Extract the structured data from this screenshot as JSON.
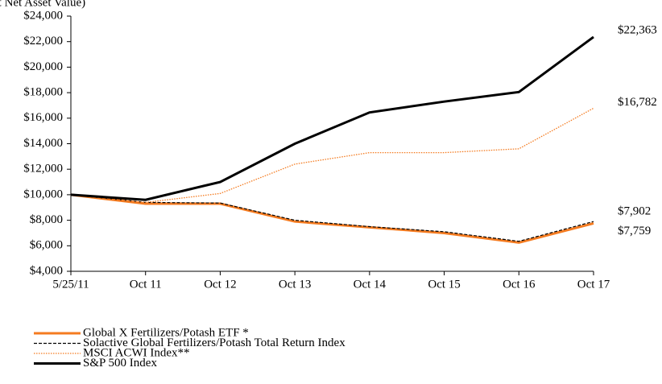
{
  "chart_data": {
    "type": "line",
    "subtitle": "(at Net Asset Value)",
    "categories": [
      "5/25/11",
      "Oct 11",
      "Oct 12",
      "Oct 13",
      "Oct 14",
      "Oct 15",
      "Oct 16",
      "Oct 17"
    ],
    "series": [
      {
        "name": "Global X Fertilizers/Potash ETF *",
        "color": "#f47b20",
        "style": "solid",
        "width": 3,
        "values": [
          10000,
          9300,
          9300,
          7900,
          7450,
          7000,
          6250,
          7759
        ],
        "value_labels": [
          null,
          null,
          null,
          null,
          null,
          null,
          null,
          "$7,759"
        ]
      },
      {
        "name": "Solactive Global Fertilizers/Potash Total Return Index",
        "color": "#000000",
        "style": "dashed",
        "width": 1.2,
        "values": [
          10000,
          9400,
          9350,
          8000,
          7500,
          7100,
          6350,
          7902
        ],
        "value_labels": [
          null,
          null,
          null,
          null,
          null,
          null,
          null,
          "$7,902"
        ]
      },
      {
        "name": "MSCI ACWI Index**",
        "color": "#f47b20",
        "style": "dotted",
        "width": 1.3,
        "values": [
          10000,
          9400,
          10100,
          12400,
          13300,
          13300,
          13600,
          16782
        ],
        "value_labels": [
          null,
          null,
          null,
          null,
          null,
          null,
          null,
          "$16,782"
        ]
      },
      {
        "name": "S&P 500 Index",
        "color": "#000000",
        "style": "solid",
        "width": 3,
        "values": [
          10000,
          9600,
          11000,
          14000,
          16450,
          17300,
          18050,
          22363
        ],
        "value_labels": [
          null,
          null,
          null,
          null,
          null,
          null,
          null,
          "$22,363"
        ]
      }
    ],
    "ylim": [
      4000,
      24000
    ],
    "yticks": [
      {
        "value": 4000,
        "label": "$4,000"
      },
      {
        "value": 6000,
        "label": "$6,000"
      },
      {
        "value": 8000,
        "label": "$8,000"
      },
      {
        "value": 10000,
        "label": "$10,000"
      },
      {
        "value": 12000,
        "label": "$12,000"
      },
      {
        "value": 14000,
        "label": "$14,000"
      },
      {
        "value": 16000,
        "label": "$16,000"
      },
      {
        "value": 18000,
        "label": "$18,000"
      },
      {
        "value": 20000,
        "label": "$20,000"
      },
      {
        "value": 22000,
        "label": "$22,000"
      },
      {
        "value": 24000,
        "label": "$24,000"
      }
    ],
    "grid": false,
    "legend": "bottom-left"
  }
}
